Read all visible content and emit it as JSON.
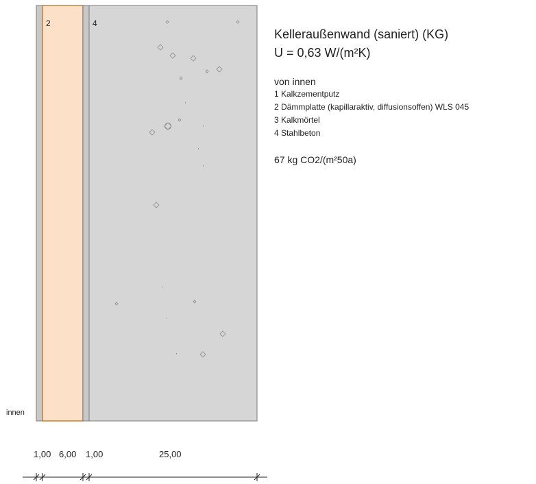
{
  "wall": {
    "title": "Kelleraußenwand (saniert) (KG)",
    "u_value": "U = 0,63 W/(m²K)",
    "direction_label": "von innen",
    "layers": [
      {
        "id": "1",
        "name": "1 Kalkzementputz",
        "thickness": "1,00",
        "color": "#c8c8c8",
        "tag": ""
      },
      {
        "id": "2",
        "name": "2 Dämmplatte (kapillaraktiv, diffusionsoffen) WLS 045",
        "thickness": "6,00",
        "color": "#fce0c8",
        "tag": "2"
      },
      {
        "id": "3",
        "name": "3 Kalkmörtel",
        "thickness": "1,00",
        "color": "#c8c8c8",
        "tag": ""
      },
      {
        "id": "4",
        "name": "4 Stahlbeton",
        "thickness": "25,00",
        "color": "#d6d6d6",
        "tag": "4"
      }
    ],
    "co2": "67 kg CO2/(m²50a)",
    "side_label": "innen",
    "colors": {
      "insulation_border": "#c0803a",
      "plaster": "#c8c8c8",
      "concrete": "#d6d6d6",
      "outline": "#7a7a7a"
    }
  }
}
